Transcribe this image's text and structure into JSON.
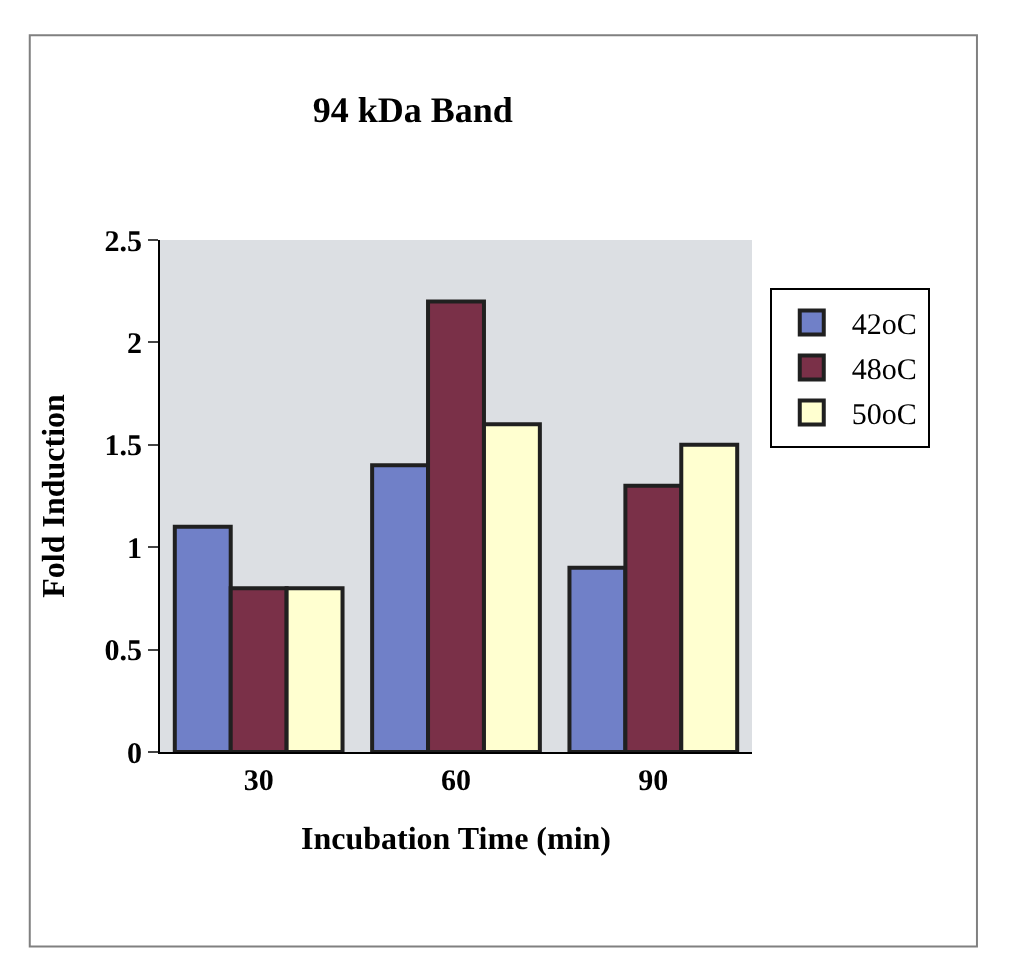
{
  "chart_data": {
    "type": "bar",
    "title": "94 kDa Band",
    "xlabel": "Incubation Time (min)",
    "ylabel": "Fold Induction",
    "categories": [
      "30",
      "60",
      "90"
    ],
    "series": [
      {
        "name": "42oC",
        "color": "#7080c8",
        "values": [
          1.1,
          1.4,
          0.9
        ]
      },
      {
        "name": "48oC",
        "color": "#7a3048",
        "values": [
          0.8,
          2.2,
          1.3
        ]
      },
      {
        "name": "50oC",
        "color": "#ffffd0",
        "values": [
          0.8,
          1.6,
          1.5
        ]
      }
    ],
    "ylim": [
      0,
      2.5
    ],
    "yticks": [
      0,
      0.5,
      1,
      1.5,
      2,
      2.5
    ],
    "grid": false,
    "legend": "right"
  }
}
